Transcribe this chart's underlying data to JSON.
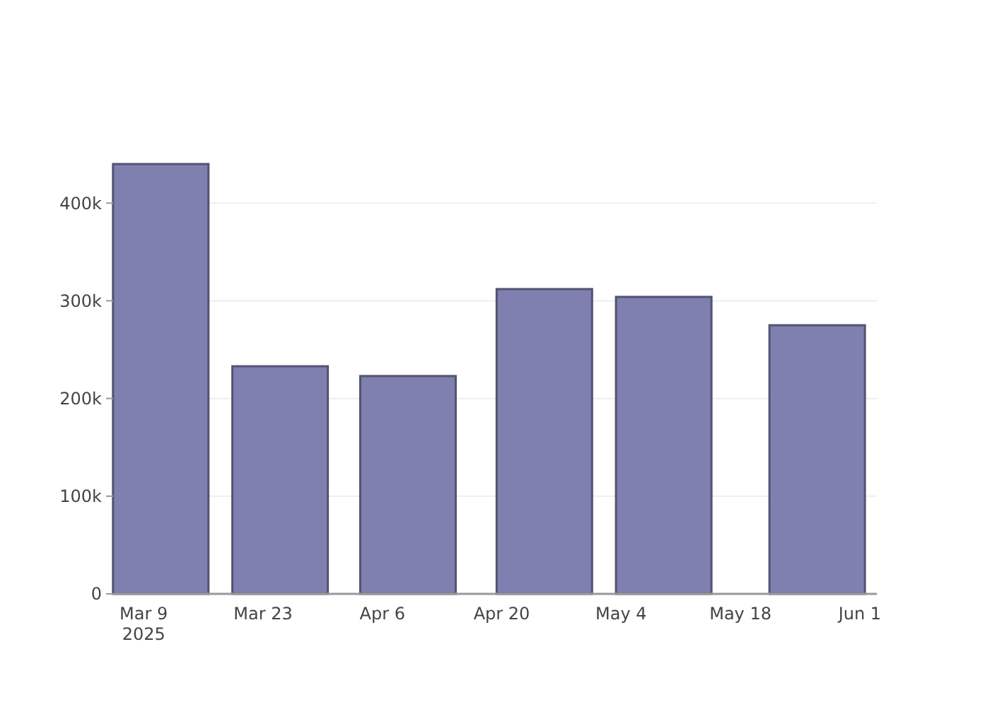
{
  "chart_data": {
    "type": "bar",
    "x": [
      "2025-03-11",
      "2025-03-25",
      "2025-04-09",
      "2025-04-25",
      "2025-05-09",
      "2025-05-27"
    ],
    "values": [
      440000,
      233000,
      223000,
      312000,
      304000,
      275000
    ],
    "color": "#7f7fb0",
    "xlim": [
      "2025-03-05T10:00",
      "2025-06-03"
    ],
    "xticks": [
      {
        "value": "2025-03-09",
        "label": "Mar 9\n2025"
      },
      {
        "value": "2025-03-23",
        "label": "Mar 23"
      },
      {
        "value": "2025-04-06",
        "label": "Apr 6"
      },
      {
        "value": "2025-04-20",
        "label": "Apr 20"
      },
      {
        "value": "2025-05-04",
        "label": "May 4"
      },
      {
        "value": "2025-05-18",
        "label": "May 18"
      },
      {
        "value": "2025-06-01",
        "label": "Jun 1"
      }
    ],
    "ylim": [
      0,
      440000
    ],
    "yticks": [
      {
        "value": 0,
        "label": "0"
      },
      {
        "value": 100000,
        "label": "100k"
      },
      {
        "value": 200000,
        "label": "200k"
      },
      {
        "value": 300000,
        "label": "300k"
      },
      {
        "value": 400000,
        "label": "400k"
      }
    ],
    "grid": "y"
  }
}
